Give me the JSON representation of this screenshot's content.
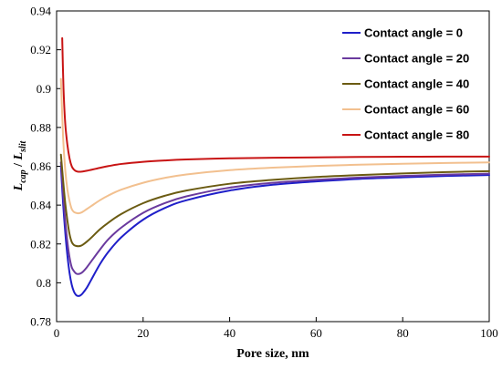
{
  "chart_data": {
    "type": "line",
    "title": "",
    "xlabel": "Pore size, nm",
    "ylabel": {
      "parts": [
        {
          "text": "L",
          "italic": true,
          "sub": false
        },
        {
          "text": "cap",
          "italic": true,
          "sub": true
        },
        {
          "text": " / ",
          "italic": false,
          "sub": false
        },
        {
          "text": "L",
          "italic": true,
          "sub": false
        },
        {
          "text": "slit",
          "italic": true,
          "sub": true
        }
      ]
    },
    "xlim": [
      0,
      100
    ],
    "ylim": [
      0.78,
      0.94
    ],
    "xticks": [
      0,
      20,
      40,
      60,
      80,
      100
    ],
    "yticks": [
      0.78,
      0.8,
      0.82,
      0.84,
      0.86,
      0.88,
      0.9,
      0.92,
      0.94
    ],
    "ytick_labels": [
      "0.78",
      "0.8",
      "0.82",
      "0.84",
      "0.86",
      "0.88",
      "0.9",
      "0.92",
      "0.94"
    ],
    "grid": false,
    "legend": "top-right",
    "series": [
      {
        "name": "Contact angle = 0",
        "color": "#1f1fc9",
        "x": [
          1,
          1.5,
          2,
          2.5,
          3,
          3.5,
          4,
          4.5,
          5,
          5.5,
          6,
          7,
          8,
          10,
          12,
          15,
          20,
          25,
          30,
          40,
          50,
          60,
          70,
          80,
          90,
          100
        ],
        "y": [
          0.86,
          0.841,
          0.826,
          0.814,
          0.805,
          0.799,
          0.7955,
          0.7937,
          0.7932,
          0.7935,
          0.7945,
          0.7975,
          0.8015,
          0.8095,
          0.816,
          0.8235,
          0.8325,
          0.8385,
          0.8425,
          0.8475,
          0.8505,
          0.8522,
          0.8535,
          0.8543,
          0.855,
          0.8555
        ]
      },
      {
        "name": "Contact angle = 20",
        "color": "#6a3a9e",
        "x": [
          1,
          1.5,
          2,
          2.5,
          3,
          3.5,
          4,
          4.5,
          5,
          5.5,
          6,
          7,
          8,
          10,
          12,
          15,
          20,
          25,
          30,
          40,
          50,
          60,
          70,
          80,
          90,
          100
        ],
        "y": [
          0.862,
          0.846,
          0.832,
          0.821,
          0.813,
          0.808,
          0.806,
          0.8048,
          0.8045,
          0.8048,
          0.8055,
          0.808,
          0.811,
          0.817,
          0.8225,
          0.8285,
          0.836,
          0.841,
          0.8445,
          0.849,
          0.8515,
          0.853,
          0.8542,
          0.855,
          0.8557,
          0.8562
        ]
      },
      {
        "name": "Contact angle = 40",
        "color": "#6b5b12",
        "x": [
          1,
          1.5,
          2,
          2.5,
          3,
          3.5,
          4,
          4.5,
          5,
          5.5,
          6,
          7,
          8,
          10,
          12,
          15,
          20,
          25,
          30,
          40,
          50,
          60,
          70,
          80,
          90,
          100
        ],
        "y": [
          0.866,
          0.853,
          0.841,
          0.832,
          0.825,
          0.821,
          0.8195,
          0.819,
          0.8188,
          0.819,
          0.8195,
          0.8212,
          0.8232,
          0.8275,
          0.831,
          0.8355,
          0.841,
          0.8448,
          0.8475,
          0.851,
          0.853,
          0.8545,
          0.8555,
          0.8563,
          0.857,
          0.8575
        ]
      },
      {
        "name": "Contact angle = 60",
        "color": "#f2c08f",
        "x": [
          1,
          1.5,
          2,
          2.5,
          3,
          3.5,
          4,
          4.5,
          5,
          5.5,
          6,
          7,
          8,
          10,
          12,
          15,
          20,
          25,
          30,
          40,
          50,
          60,
          70,
          80,
          90,
          100
        ],
        "y": [
          0.905,
          0.875,
          0.858,
          0.848,
          0.842,
          0.838,
          0.8365,
          0.836,
          0.8358,
          0.836,
          0.8365,
          0.838,
          0.8395,
          0.8425,
          0.845,
          0.848,
          0.8515,
          0.854,
          0.8558,
          0.858,
          0.8593,
          0.8602,
          0.8608,
          0.8613,
          0.8617,
          0.862
        ]
      },
      {
        "name": "Contact angle = 80",
        "color": "#c81414",
        "x": [
          1.3,
          1.6,
          2,
          2.5,
          3,
          3.5,
          4,
          4.5,
          5,
          5.5,
          6,
          7,
          8,
          10,
          12,
          15,
          20,
          25,
          30,
          40,
          50,
          60,
          70,
          80,
          90,
          100
        ],
        "y": [
          0.926,
          0.9,
          0.882,
          0.871,
          0.864,
          0.86,
          0.8583,
          0.8575,
          0.8572,
          0.8572,
          0.8573,
          0.8577,
          0.8582,
          0.8592,
          0.8601,
          0.8612,
          0.8623,
          0.863,
          0.8635,
          0.8641,
          0.8644,
          0.8646,
          0.8648,
          0.8649,
          0.865,
          0.865
        ]
      }
    ]
  }
}
